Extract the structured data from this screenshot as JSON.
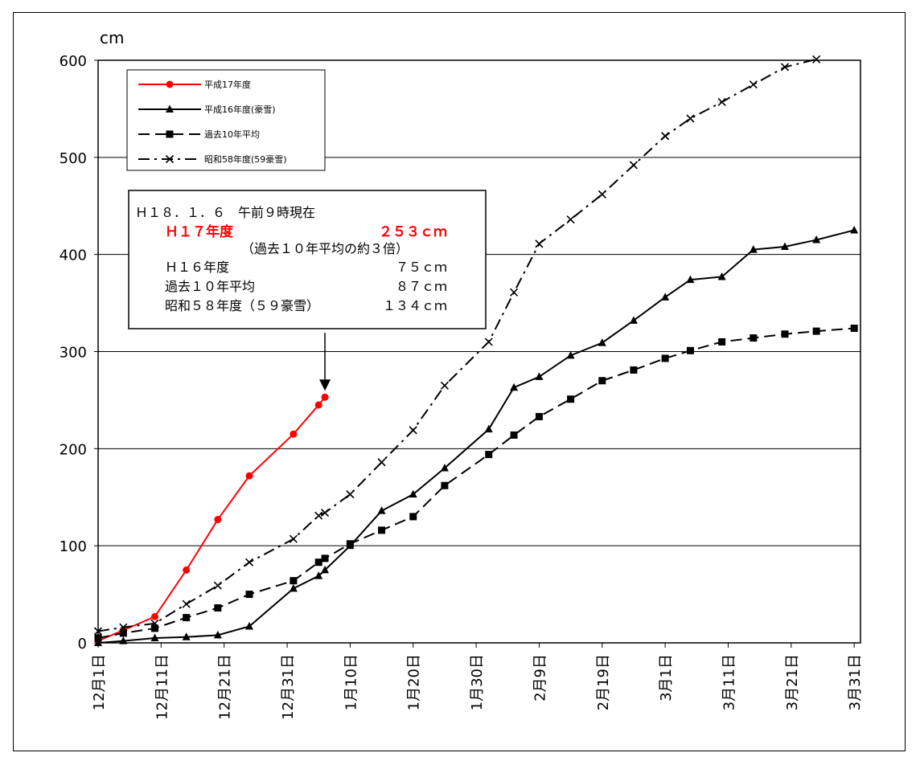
{
  "chart_data": {
    "type": "line",
    "ylabel": "cm",
    "ylim": [
      0,
      600
    ],
    "yticks": [
      "0",
      "100",
      "200",
      "300",
      "400",
      "500",
      "600"
    ],
    "xlim": [
      0,
      121
    ],
    "x_tick_positions": [
      0,
      10,
      20,
      30,
      40,
      50,
      60,
      70,
      80,
      90,
      100,
      110,
      120
    ],
    "x_tick_labels": [
      "12月1日",
      "12月11日",
      "12月21日",
      "12月31日",
      "1月10日",
      "1月20日",
      "1月30日",
      "2月9日",
      "2月19日",
      "3月1日",
      "3月11日",
      "3月21日",
      "3月31日"
    ],
    "grid": "horizontal",
    "legend_position": "top-left",
    "series": [
      {
        "name": "平成17年度",
        "color": "#ff0000",
        "marker": "circle",
        "line": "solid",
        "x": [
          0,
          4,
          9,
          14,
          19,
          24,
          31,
          35,
          36
        ],
        "y": [
          2,
          13,
          27,
          75,
          127,
          172,
          215,
          245,
          253
        ]
      },
      {
        "name": "平成16年度(豪雪)",
        "color": "#000000",
        "marker": "triangle",
        "line": "solid",
        "x": [
          0,
          4,
          9,
          14,
          19,
          24,
          31,
          35,
          36,
          40,
          45,
          50,
          55,
          62,
          66,
          70,
          75,
          80,
          85,
          90,
          94,
          99,
          104,
          109,
          114,
          120
        ],
        "y": [
          0,
          2,
          5,
          6,
          8,
          17,
          56,
          69,
          75,
          100,
          136,
          153,
          180,
          220,
          263,
          274,
          296,
          309,
          332,
          356,
          374,
          377,
          405,
          408,
          415,
          425
        ]
      },
      {
        "name": "過去10年平均",
        "color": "#000000",
        "marker": "square",
        "line": "dashed",
        "x": [
          0,
          4,
          9,
          14,
          19,
          24,
          31,
          35,
          36,
          40,
          45,
          50,
          55,
          62,
          66,
          70,
          75,
          80,
          85,
          90,
          94,
          99,
          104,
          109,
          114,
          120
        ],
        "y": [
          5,
          10,
          15,
          26,
          36,
          50,
          64,
          83,
          87,
          102,
          116,
          130,
          162,
          194,
          214,
          233,
          251,
          270,
          281,
          293,
          301,
          310,
          314,
          318,
          321,
          324
        ]
      },
      {
        "name": "昭和58年度(59豪雪)",
        "color": "#000000",
        "marker": "x",
        "line": "dashdot",
        "x": [
          0,
          4,
          9,
          14,
          19,
          24,
          31,
          35,
          36,
          40,
          45,
          50,
          55,
          62,
          66,
          70,
          75,
          80,
          85,
          90,
          94,
          99,
          104,
          109,
          114
        ],
        "y": [
          12,
          16,
          20,
          40,
          59,
          83,
          107,
          131,
          134,
          153,
          186,
          219,
          265,
          310,
          361,
          411,
          436,
          462,
          492,
          522,
          540,
          557,
          575,
          593,
          601
        ]
      }
    ],
    "annotation": {
      "lines": [
        {
          "label": "Ｈ１８．１．６　午前９時現在",
          "value": ""
        },
        {
          "label": "Ｈ１７年度",
          "value": "２５３ｃｍ"
        },
        {
          "label": "（過去１０年平均の約３倍）",
          "value": ""
        },
        {
          "label": "Ｈ１６年度",
          "value": "７５ｃｍ"
        },
        {
          "label": "過去１０年平均",
          "value": "８７ｃｍ"
        },
        {
          "label": "昭和５８年度（５９豪雪）",
          "value": "１３４ｃｍ"
        }
      ],
      "arrow_target_x": 36,
      "arrow_target_y": 253
    }
  }
}
